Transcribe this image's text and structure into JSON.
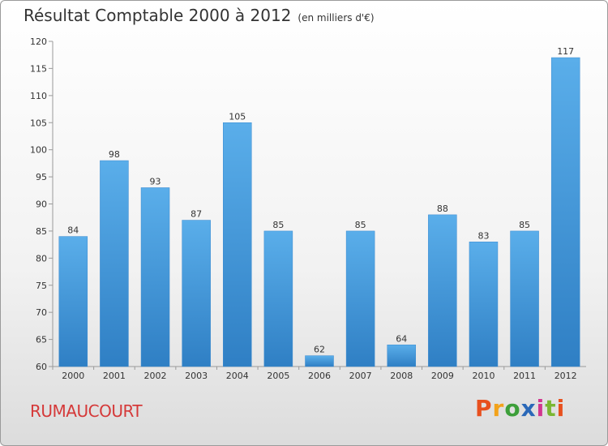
{
  "chart_data": {
    "type": "bar",
    "title": "Résultat Comptable 2000 à 2012",
    "subtitle": "(en milliers d'€)",
    "categories": [
      "2000",
      "2001",
      "2002",
      "2003",
      "2004",
      "2005",
      "2006",
      "2007",
      "2008",
      "2009",
      "2010",
      "2011",
      "2012"
    ],
    "values": [
      84,
      98,
      93,
      87,
      105,
      85,
      62,
      85,
      64,
      88,
      83,
      85,
      117
    ],
    "ylim": [
      60,
      120
    ],
    "yticks": [
      60,
      65,
      70,
      75,
      80,
      85,
      90,
      95,
      100,
      105,
      110,
      115,
      120
    ],
    "xlabel": "",
    "ylabel": "",
    "grid": false,
    "bar_color": "#4a9fe0"
  },
  "footer": {
    "commune": "RUMAUCOURT",
    "logo_text": "Proxiti"
  }
}
